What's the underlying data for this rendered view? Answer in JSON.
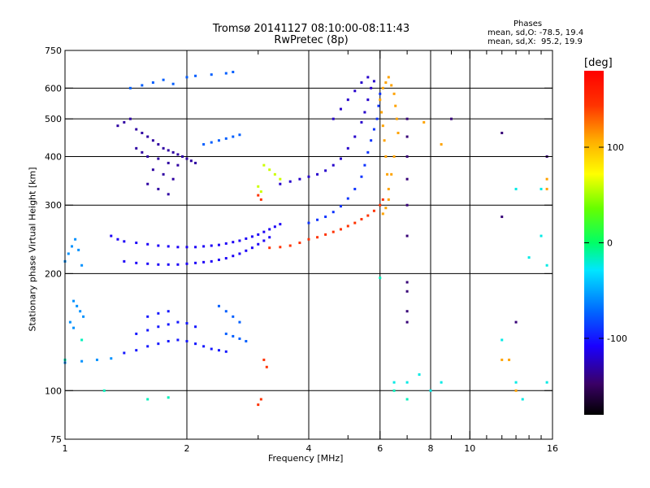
{
  "header": {
    "title_line1": "Tromsø 20141127 08:10:00-08:11:43",
    "title_line2": "RwPretec (8p)",
    "phases_label": "Phases",
    "phase_o": "mean, sd,O: -78.5, 19.4",
    "phase_x": "mean, sd,X:  95.2, 19.9"
  },
  "chart_data": {
    "type": "scatter",
    "title": "Tromsø 20141127 08:10:00-08:11:43",
    "subtitle": "RwPretec (8p)",
    "xlabel": "Frequency [MHz]",
    "ylabel": "Stationary phase Virtual Height [km]",
    "x_scale": "log",
    "y_scale": "log",
    "xlim": [
      1,
      16
    ],
    "ylim": [
      75,
      750
    ],
    "x_ticks": [
      1,
      2,
      4,
      6,
      8,
      10,
      16
    ],
    "x_minor_ticks": [
      3,
      5,
      7,
      9,
      11,
      12,
      13,
      14,
      15
    ],
    "y_ticks": [
      75,
      100,
      200,
      300,
      400,
      500,
      600,
      750
    ],
    "y_grid": [
      100,
      200,
      300,
      400,
      500,
      600
    ],
    "x_grid": [
      2,
      4,
      6,
      8,
      10
    ],
    "grid": true,
    "colorbar": {
      "unit": "[deg]",
      "ticks": [
        -100,
        0,
        100
      ],
      "range": [
        -180,
        180
      ],
      "colors": [
        "#000000",
        "#3a0066",
        "#1a00ff",
        "#0066ff",
        "#00e6ff",
        "#00ff66",
        "#66ff00",
        "#ffff00",
        "#ffaa00",
        "#ff3300",
        "#ff0000"
      ]
    },
    "series": [
      {
        "phase": -130,
        "points": [
          [
            1.35,
            480
          ],
          [
            1.4,
            490
          ],
          [
            1.45,
            500
          ],
          [
            1.5,
            470
          ],
          [
            1.55,
            460
          ],
          [
            1.6,
            450
          ],
          [
            1.65,
            440
          ],
          [
            1.7,
            430
          ],
          [
            1.75,
            420
          ],
          [
            1.8,
            415
          ],
          [
            1.85,
            410
          ],
          [
            1.9,
            405
          ],
          [
            1.95,
            400
          ],
          [
            2.0,
            395
          ],
          [
            2.05,
            390
          ],
          [
            2.1,
            385
          ],
          [
            1.5,
            420
          ],
          [
            1.55,
            410
          ],
          [
            1.6,
            400
          ],
          [
            1.7,
            395
          ],
          [
            1.8,
            385
          ],
          [
            1.9,
            380
          ],
          [
            1.65,
            370
          ],
          [
            1.75,
            360
          ],
          [
            1.85,
            350
          ],
          [
            1.6,
            340
          ],
          [
            1.7,
            330
          ],
          [
            1.8,
            320
          ]
        ]
      },
      {
        "phase": -110,
        "points": [
          [
            1.3,
            250
          ],
          [
            1.35,
            245
          ],
          [
            1.4,
            242
          ],
          [
            1.5,
            240
          ],
          [
            1.6,
            238
          ],
          [
            1.7,
            236
          ],
          [
            1.8,
            235
          ],
          [
            1.9,
            234
          ],
          [
            2.0,
            234
          ],
          [
            2.1,
            234
          ],
          [
            2.2,
            235
          ],
          [
            2.3,
            236
          ],
          [
            2.4,
            237
          ],
          [
            2.5,
            239
          ],
          [
            2.6,
            241
          ],
          [
            2.7,
            243
          ],
          [
            2.8,
            246
          ],
          [
            2.9,
            249
          ],
          [
            3.0,
            252
          ],
          [
            3.1,
            256
          ],
          [
            3.2,
            260
          ],
          [
            3.3,
            264
          ],
          [
            3.4,
            268
          ],
          [
            1.4,
            215
          ],
          [
            1.5,
            213
          ],
          [
            1.6,
            212
          ],
          [
            1.7,
            211
          ],
          [
            1.8,
            211
          ],
          [
            1.9,
            211
          ],
          [
            2.0,
            212
          ],
          [
            2.1,
            213
          ],
          [
            2.2,
            214
          ],
          [
            2.3,
            215
          ],
          [
            2.4,
            217
          ],
          [
            2.5,
            219
          ],
          [
            2.6,
            222
          ],
          [
            2.7,
            225
          ],
          [
            2.8,
            229
          ],
          [
            2.9,
            233
          ],
          [
            3.0,
            238
          ],
          [
            3.1,
            243
          ],
          [
            3.2,
            248
          ]
        ]
      },
      {
        "phase": -100,
        "points": [
          [
            1.4,
            125
          ],
          [
            1.5,
            127
          ],
          [
            1.6,
            130
          ],
          [
            1.7,
            132
          ],
          [
            1.8,
            134
          ],
          [
            1.9,
            135
          ],
          [
            2.0,
            134
          ],
          [
            2.1,
            132
          ],
          [
            2.2,
            130
          ],
          [
            2.3,
            128
          ],
          [
            2.4,
            127
          ],
          [
            2.5,
            126
          ],
          [
            1.5,
            140
          ],
          [
            1.6,
            143
          ],
          [
            1.7,
            146
          ],
          [
            1.8,
            148
          ],
          [
            1.9,
            150
          ],
          [
            2.0,
            149
          ],
          [
            2.1,
            146
          ],
          [
            1.6,
            155
          ],
          [
            1.7,
            158
          ],
          [
            1.8,
            160
          ]
        ]
      },
      {
        "phase": -120,
        "points": [
          [
            3.4,
            340
          ],
          [
            3.6,
            345
          ],
          [
            3.8,
            350
          ],
          [
            4.0,
            355
          ],
          [
            4.2,
            360
          ],
          [
            4.4,
            368
          ],
          [
            4.6,
            380
          ],
          [
            4.8,
            395
          ],
          [
            5.0,
            420
          ],
          [
            5.2,
            450
          ],
          [
            5.4,
            490
          ],
          [
            5.5,
            520
          ],
          [
            5.6,
            560
          ],
          [
            5.7,
            600
          ],
          [
            5.8,
            625
          ],
          [
            4.6,
            500
          ],
          [
            4.8,
            530
          ],
          [
            5.0,
            560
          ],
          [
            5.2,
            590
          ],
          [
            5.4,
            620
          ],
          [
            5.6,
            640
          ]
        ]
      },
      {
        "phase": -90,
        "points": [
          [
            4.0,
            270
          ],
          [
            4.2,
            275
          ],
          [
            4.4,
            280
          ],
          [
            4.6,
            288
          ],
          [
            4.8,
            298
          ],
          [
            5.0,
            312
          ],
          [
            5.2,
            330
          ],
          [
            5.4,
            355
          ],
          [
            5.5,
            380
          ],
          [
            5.6,
            410
          ],
          [
            5.7,
            440
          ],
          [
            5.8,
            470
          ],
          [
            5.9,
            500
          ],
          [
            5.95,
            540
          ],
          [
            6.0,
            580
          ]
        ]
      },
      {
        "phase": -60,
        "points": [
          [
            1.0,
            215
          ],
          [
            1.02,
            225
          ],
          [
            1.04,
            235
          ],
          [
            1.06,
            245
          ],
          [
            1.08,
            230
          ],
          [
            1.1,
            210
          ],
          [
            1.05,
            170
          ],
          [
            1.07,
            165
          ],
          [
            1.09,
            160
          ],
          [
            1.11,
            155
          ],
          [
            1.03,
            150
          ],
          [
            1.05,
            145
          ],
          [
            1.0,
            118
          ],
          [
            1.1,
            119
          ],
          [
            1.2,
            120
          ],
          [
            1.3,
            121
          ]
        ]
      },
      {
        "phase": -75,
        "points": [
          [
            1.45,
            600
          ],
          [
            1.55,
            610
          ],
          [
            1.65,
            620
          ],
          [
            1.75,
            630
          ],
          [
            1.85,
            615
          ],
          [
            2.0,
            640
          ],
          [
            2.1,
            645
          ],
          [
            2.3,
            650
          ],
          [
            2.5,
            655
          ],
          [
            2.6,
            660
          ],
          [
            2.2,
            430
          ],
          [
            2.3,
            435
          ],
          [
            2.4,
            440
          ],
          [
            2.5,
            445
          ],
          [
            2.6,
            450
          ],
          [
            2.7,
            455
          ],
          [
            2.4,
            165
          ],
          [
            2.5,
            160
          ],
          [
            2.6,
            155
          ],
          [
            2.7,
            150
          ],
          [
            2.5,
            140
          ],
          [
            2.6,
            138
          ],
          [
            2.7,
            136
          ],
          [
            2.8,
            134
          ]
        ]
      },
      {
        "phase": 110,
        "points": [
          [
            6.0,
            560
          ],
          [
            6.05,
            520
          ],
          [
            6.1,
            480
          ],
          [
            6.15,
            440
          ],
          [
            6.2,
            400
          ],
          [
            6.25,
            360
          ],
          [
            6.3,
            330
          ],
          [
            6.1,
            600
          ],
          [
            6.2,
            620
          ],
          [
            6.3,
            640
          ],
          [
            6.4,
            610
          ],
          [
            6.5,
            580
          ],
          [
            6.55,
            540
          ],
          [
            6.6,
            500
          ],
          [
            6.65,
            460
          ],
          [
            6.5,
            400
          ],
          [
            6.4,
            360
          ],
          [
            6.3,
            310
          ],
          [
            6.2,
            295
          ],
          [
            6.1,
            285
          ]
        ]
      },
      {
        "phase": 145,
        "points": [
          [
            4.0,
            245
          ],
          [
            4.2,
            248
          ],
          [
            4.4,
            252
          ],
          [
            4.6,
            256
          ],
          [
            4.8,
            260
          ],
          [
            5.0,
            265
          ],
          [
            5.2,
            270
          ],
          [
            5.4,
            276
          ],
          [
            5.6,
            282
          ],
          [
            5.8,
            290
          ],
          [
            6.0,
            300
          ],
          [
            6.1,
            310
          ],
          [
            3.8,
            240
          ],
          [
            3.6,
            236
          ],
          [
            3.4,
            234
          ],
          [
            3.2,
            233
          ],
          [
            3.0,
            318
          ],
          [
            3.05,
            310
          ],
          [
            3.1,
            120
          ],
          [
            3.15,
            115
          ],
          [
            3.0,
            92
          ],
          [
            3.05,
            95
          ]
        ]
      },
      {
        "phase": 60,
        "points": [
          [
            3.1,
            380
          ],
          [
            3.2,
            370
          ],
          [
            3.3,
            360
          ],
          [
            3.4,
            350
          ],
          [
            3.0,
            335
          ],
          [
            3.05,
            325
          ]
        ]
      },
      {
        "phase": -140,
        "points": [
          [
            7.0,
            150
          ],
          [
            7.0,
            160
          ],
          [
            7.0,
            180
          ],
          [
            7.0,
            190
          ],
          [
            7.0,
            250
          ],
          [
            7.0,
            300
          ],
          [
            7.0,
            350
          ],
          [
            7.0,
            400
          ],
          [
            7.0,
            450
          ],
          [
            7.0,
            500
          ],
          [
            12.0,
            280
          ],
          [
            12.0,
            460
          ],
          [
            13.0,
            150
          ],
          [
            15.5,
            400
          ],
          [
            9.0,
            500
          ]
        ]
      },
      {
        "phase": -30,
        "points": [
          [
            6.5,
            105
          ],
          [
            7.0,
            105
          ],
          [
            7.5,
            110
          ],
          [
            8.0,
            100
          ],
          [
            8.5,
            105
          ],
          [
            12.0,
            135
          ],
          [
            13.0,
            105
          ],
          [
            13.5,
            95
          ],
          [
            13.0,
            330
          ],
          [
            15.5,
            210
          ],
          [
            15.0,
            250
          ],
          [
            15.5,
            105
          ],
          [
            14.0,
            220
          ],
          [
            15.0,
            330
          ]
        ]
      },
      {
        "phase": 110,
        "points": [
          [
            12.0,
            120
          ],
          [
            12.5,
            120
          ],
          [
            13.0,
            100
          ],
          [
            15.5,
            330
          ],
          [
            15.5,
            350
          ],
          [
            8.5,
            430
          ],
          [
            7.7,
            490
          ]
        ]
      },
      {
        "phase": -20,
        "points": [
          [
            1.0,
            120
          ],
          [
            1.1,
            135
          ],
          [
            1.25,
            100
          ],
          [
            1.6,
            95
          ],
          [
            1.8,
            96
          ],
          [
            6.0,
            195
          ],
          [
            6.5,
            100
          ],
          [
            7.0,
            95
          ]
        ]
      }
    ]
  }
}
